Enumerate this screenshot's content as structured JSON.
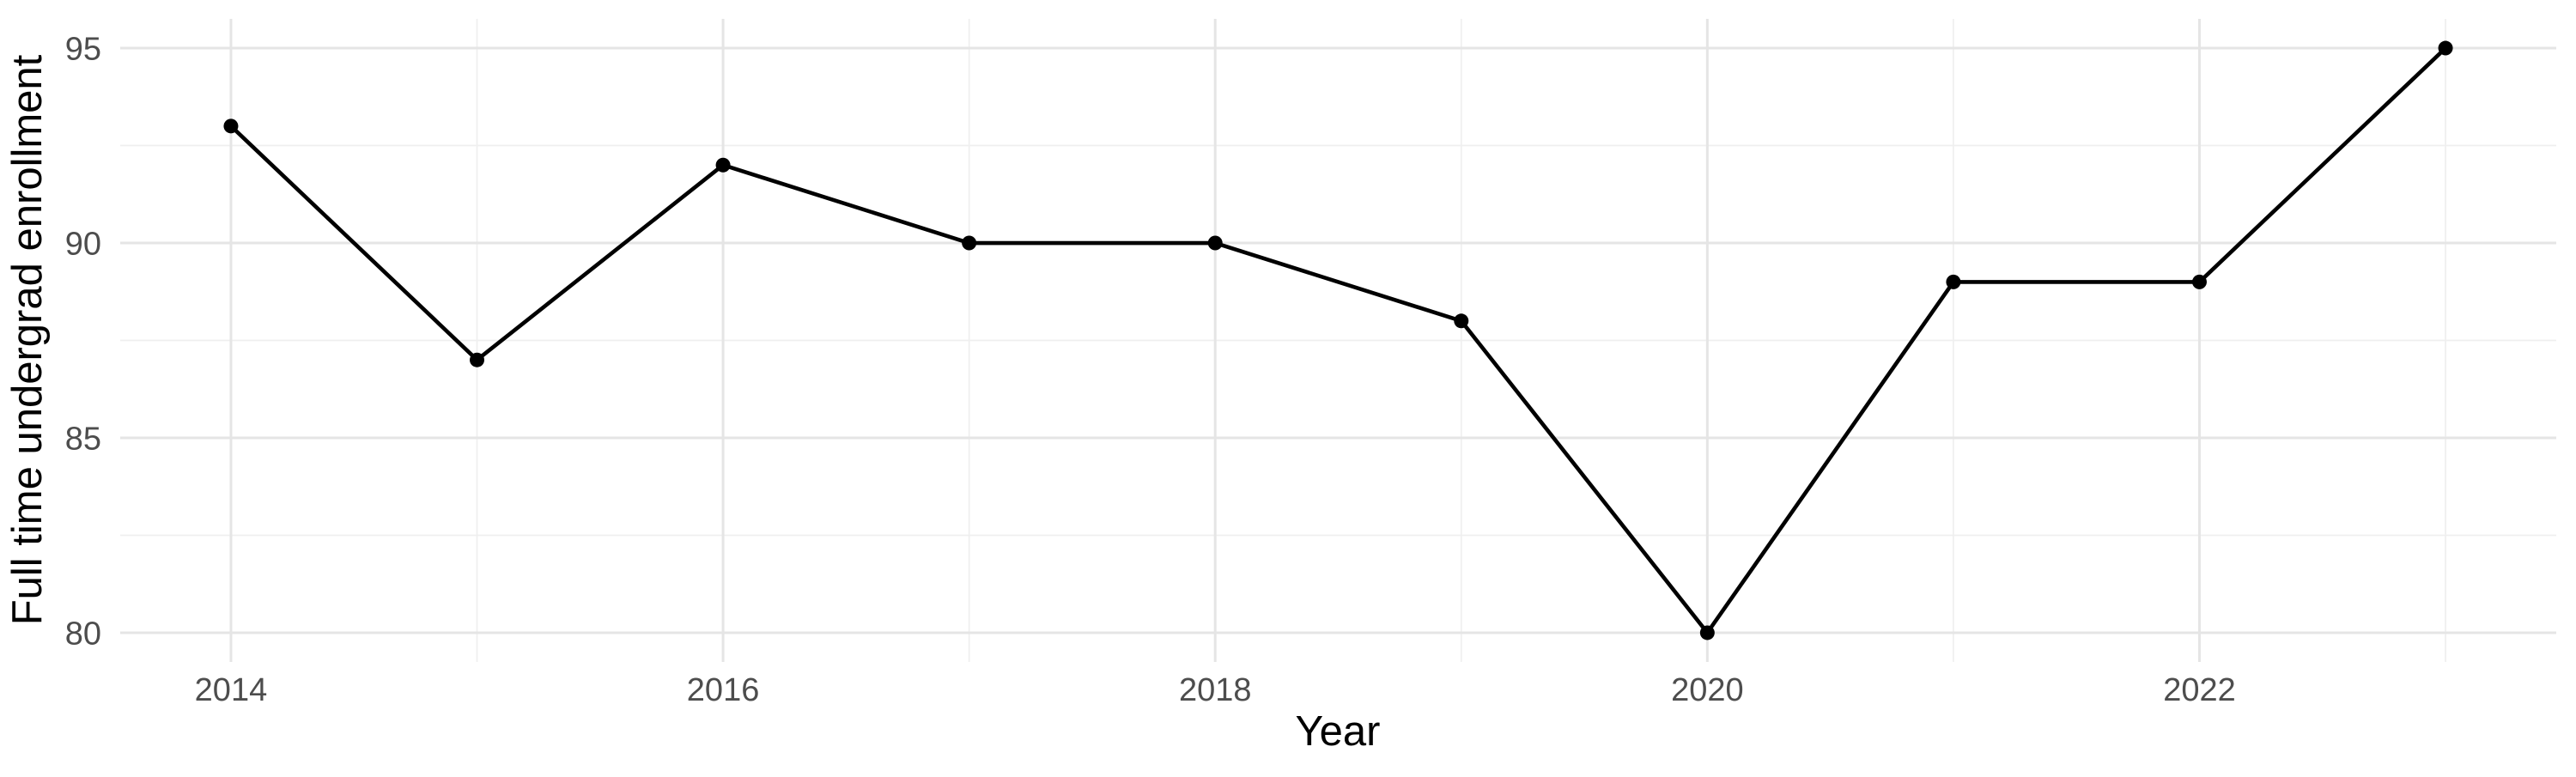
{
  "chart_data": {
    "type": "line",
    "title": "",
    "xlabel": "Year",
    "ylabel": "Full time undergrad enrollment",
    "x": [
      2014,
      2015,
      2016,
      2017,
      2018,
      2019,
      2020,
      2021,
      2022,
      2023
    ],
    "values": [
      93,
      87,
      92,
      90,
      90,
      88,
      80,
      89,
      89,
      95
    ],
    "series": [
      {
        "name": "Full time undergrad enrollment",
        "values": [
          93,
          87,
          92,
          90,
          90,
          88,
          80,
          89,
          89,
          95
        ]
      }
    ],
    "x_tick_values": [
      2014,
      2016,
      2018,
      2020,
      2022
    ],
    "x_tick_labels": [
      "2014",
      "2016",
      "2018",
      "2020",
      "2022"
    ],
    "x_minor_gridlines": [
      2015,
      2017,
      2019,
      2021,
      2023
    ],
    "y_tick_values": [
      80,
      85,
      90,
      95
    ],
    "y_tick_labels": [
      "80",
      "85",
      "90",
      "95"
    ],
    "y_minor_gridlines": [
      82.5,
      87.5,
      92.5
    ],
    "xlim": [
      2013.55,
      2023.45
    ],
    "ylim": [
      79.25,
      95.75
    ],
    "grid": "major+minor",
    "legend_position": "none",
    "marker": "filled-circle",
    "colors": {
      "line": "#000000",
      "point": "#000000",
      "grid_major": "#e5e5e5",
      "grid_minor": "#efefef",
      "tick_label": "#4d4d4d",
      "axis_title": "#000000",
      "background": "#ffffff"
    }
  }
}
